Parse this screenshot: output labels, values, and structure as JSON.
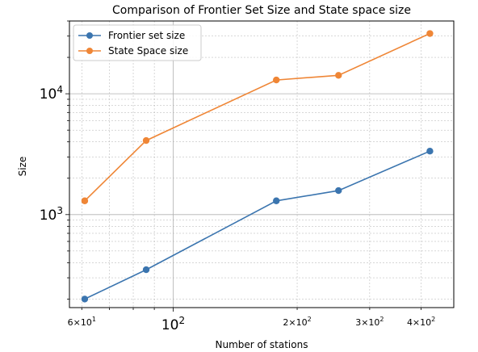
{
  "chart_data": {
    "type": "line",
    "title": "Comparison of Frontier Set Size and State space size",
    "xlabel": "Number of stations",
    "ylabel": "Size",
    "xscale": "log",
    "yscale": "log",
    "xlim": [
      56,
      480
    ],
    "ylim": [
      170,
      40000
    ],
    "x": [
      61,
      86,
      178,
      252,
      420
    ],
    "series": [
      {
        "name": "Frontier set size",
        "color": "#3b75af",
        "values": [
          200,
          350,
          1300,
          1580,
          3350
        ]
      },
      {
        "name": "State Space size",
        "color": "#ef8636",
        "values": [
          1300,
          4100,
          13000,
          14200,
          31500
        ]
      }
    ],
    "xticks_major": [
      {
        "value": 100,
        "base": "10",
        "exp": "2"
      }
    ],
    "xticks_minor": [
      {
        "value": 60,
        "mant": "6",
        "base": "10",
        "exp": "1"
      },
      {
        "value": 200,
        "mant": "2",
        "base": "10",
        "exp": "2"
      },
      {
        "value": 300,
        "mant": "3",
        "base": "10",
        "exp": "2"
      },
      {
        "value": 400,
        "mant": "4",
        "base": "10",
        "exp": "2"
      }
    ],
    "yticks_major": [
      {
        "value": 1000,
        "base": "10",
        "exp": "3"
      },
      {
        "value": 10000,
        "base": "10",
        "exp": "4"
      }
    ],
    "grid": true,
    "legend": "top-left"
  }
}
